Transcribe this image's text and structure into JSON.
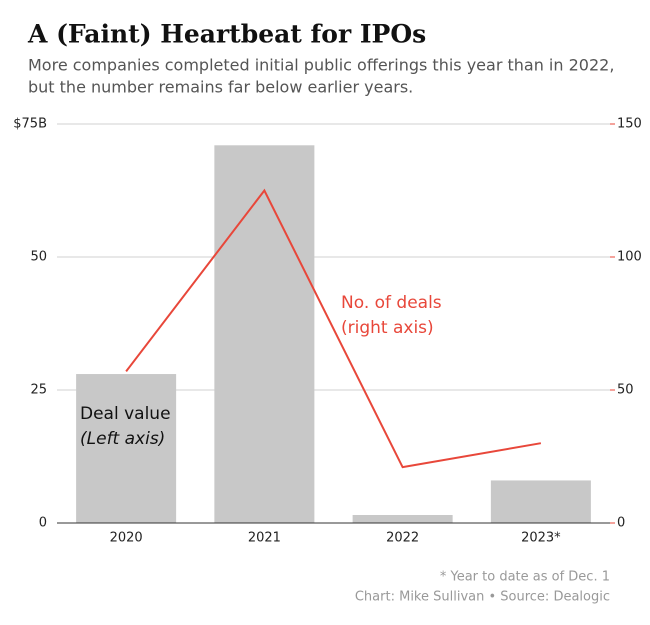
{
  "chart_data": {
    "type": "bar_line",
    "title": "A (Faint) Heartbeat for IPOs",
    "subtitle": [
      "More companies completed initial public offerings this year than in 2022,",
      "but the number remains far below earlier years."
    ],
    "categories": [
      "2020",
      "2021",
      "2022",
      "2023*"
    ],
    "series": [
      {
        "name": "Deal value",
        "type": "bar",
        "color": "#c8c8c8",
        "values": [
          28,
          71,
          1.5,
          8
        ]
      },
      {
        "name": "No. of deals",
        "type": "line",
        "axis": "y2",
        "color": "#e8473a",
        "values": [
          57,
          125,
          21,
          30
        ]
      }
    ],
    "annotations": [
      "(Left axis)",
      "(right axis)"
    ],
    "ylim": [
      0,
      75
    ],
    "yticks": [
      0,
      25,
      50,
      {
        "value": 75,
        "label": "$75B"
      }
    ],
    "y2lim": [
      0,
      150
    ],
    "y2ticks": [
      0,
      50,
      100,
      150
    ],
    "grid": true,
    "footnote": "* Year to date as of Dec. 1",
    "source": "Chart: Mike Sullivan • Source: Dealogic"
  }
}
